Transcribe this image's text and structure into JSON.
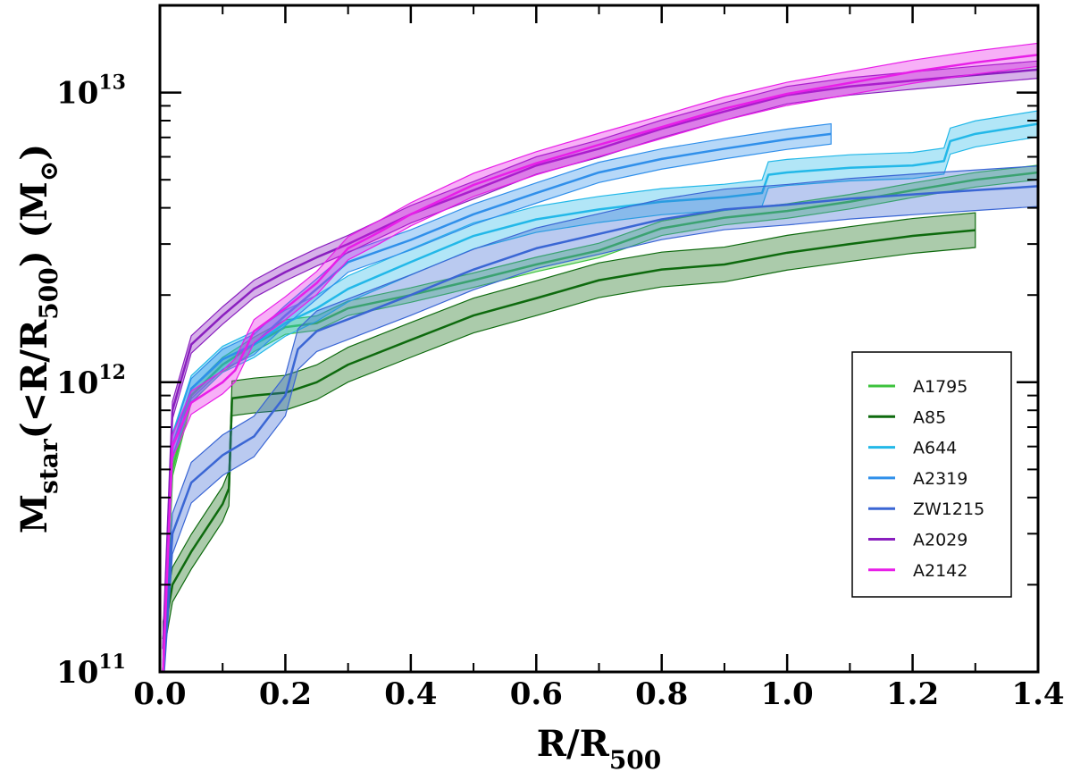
{
  "chart_data": {
    "type": "line",
    "title": "",
    "xlabel": {
      "base": "R/R",
      "sub": "500"
    },
    "ylabel": {
      "m": "M",
      "star": "star",
      "open": "(<R/R",
      "sub500": "500",
      "close": ") (M",
      "sun": "⊙",
      "end": ")"
    },
    "xlim": [
      0.0,
      1.4
    ],
    "ylim": [
      100000000000.0,
      20000000000000.0
    ],
    "yscale": "log",
    "grid": false,
    "legend_position": "lower-right",
    "x_ticks": [
      {
        "value": 0.0,
        "label": "0.0"
      },
      {
        "value": 0.2,
        "label": "0.2"
      },
      {
        "value": 0.4,
        "label": "0.4"
      },
      {
        "value": 0.6,
        "label": "0.6"
      },
      {
        "value": 0.8,
        "label": "0.8"
      },
      {
        "value": 1.0,
        "label": "1.0"
      },
      {
        "value": 1.2,
        "label": "1.2"
      },
      {
        "value": 1.4,
        "label": "1.4"
      }
    ],
    "y_ticks": [
      {
        "value": 100000000000.0,
        "base": "10",
        "exp": "11"
      },
      {
        "value": 1000000000000.0,
        "base": "10",
        "exp": "12"
      },
      {
        "value": 10000000000000.0,
        "base": "10",
        "exp": "13"
      }
    ],
    "series": [
      {
        "name": "A1795",
        "color": "#3cc23c",
        "band_dex": 0.025,
        "x": [
          0.005,
          0.02,
          0.05,
          0.1,
          0.15,
          0.2,
          0.25,
          0.3,
          0.4,
          0.5,
          0.6,
          0.7,
          0.8,
          0.9,
          1.0,
          1.1,
          1.2,
          1.3,
          1.4
        ],
        "y": [
          100000000000.0,
          500000000000.0,
          900000000000.0,
          1150000000000.0,
          1350000000000.0,
          1550000000000.0,
          1600000000000.0,
          1800000000000.0,
          2000000000000.0,
          2250000000000.0,
          2550000000000.0,
          2850000000000.0,
          3400000000000.0,
          3700000000000.0,
          3900000000000.0,
          4200000000000.0,
          4600000000000.0,
          5000000000000.0,
          5300000000000.0
        ]
      },
      {
        "name": "A85",
        "color": "#0e6a0e",
        "band_dex": 0.06,
        "x": [
          0.005,
          0.02,
          0.05,
          0.1,
          0.11,
          0.115,
          0.15,
          0.2,
          0.25,
          0.3,
          0.4,
          0.5,
          0.6,
          0.7,
          0.8,
          0.9,
          1.0,
          1.1,
          1.2,
          1.3
        ],
        "y": [
          130000000000.0,
          200000000000.0,
          260000000000.0,
          380000000000.0,
          430000000000.0,
          880000000000.0,
          900000000000.0,
          920000000000.0,
          1000000000000.0,
          1150000000000.0,
          1400000000000.0,
          1700000000000.0,
          1950000000000.0,
          2250000000000.0,
          2450000000000.0,
          2550000000000.0,
          2800000000000.0,
          3000000000000.0,
          3200000000000.0,
          3350000000000.0
        ]
      },
      {
        "name": "A644",
        "color": "#22b8e8",
        "band_dex": 0.045,
        "x": [
          0.005,
          0.02,
          0.05,
          0.1,
          0.15,
          0.2,
          0.25,
          0.3,
          0.4,
          0.5,
          0.6,
          0.7,
          0.8,
          0.9,
          0.96,
          0.97,
          1.0,
          1.1,
          1.2,
          1.25,
          1.26,
          1.3,
          1.4
        ],
        "y": [
          100000000000.0,
          600000000000.0,
          950000000000.0,
          1200000000000.0,
          1350000000000.0,
          1600000000000.0,
          1800000000000.0,
          2100000000000.0,
          2600000000000.0,
          3200000000000.0,
          3650000000000.0,
          3950000000000.0,
          4200000000000.0,
          4350000000000.0,
          4500000000000.0,
          5200000000000.0,
          5300000000000.0,
          5500000000000.0,
          5600000000000.0,
          5800000000000.0,
          6800000000000.0,
          7200000000000.0,
          7800000000000.0
        ]
      },
      {
        "name": "A2319",
        "color": "#2f8fea",
        "band_dex": 0.035,
        "x": [
          0.005,
          0.02,
          0.05,
          0.1,
          0.15,
          0.2,
          0.25,
          0.3,
          0.4,
          0.5,
          0.6,
          0.7,
          0.8,
          0.9,
          1.0,
          1.07
        ],
        "y": [
          100000000000.0,
          600000000000.0,
          950000000000.0,
          1200000000000.0,
          1350000000000.0,
          1700000000000.0,
          2100000000000.0,
          2600000000000.0,
          3100000000000.0,
          3800000000000.0,
          4500000000000.0,
          5300000000000.0,
          5900000000000.0,
          6400000000000.0,
          6900000000000.0,
          7200000000000.0
        ]
      },
      {
        "name": "ZW1215",
        "color": "#3a66d4",
        "band_dex": 0.07,
        "x": [
          0.005,
          0.02,
          0.05,
          0.1,
          0.15,
          0.2,
          0.22,
          0.25,
          0.3,
          0.4,
          0.5,
          0.6,
          0.7,
          0.8,
          0.9,
          1.0,
          1.1,
          1.2,
          1.3,
          1.4
        ],
        "y": [
          100000000000.0,
          300000000000.0,
          450000000000.0,
          560000000000.0,
          650000000000.0,
          900000000000.0,
          1300000000000.0,
          1500000000000.0,
          1650000000000.0,
          2000000000000.0,
          2450000000000.0,
          2900000000000.0,
          3250000000000.0,
          3650000000000.0,
          3950000000000.0,
          4100000000000.0,
          4300000000000.0,
          4450000000000.0,
          4600000000000.0,
          4750000000000.0
        ]
      },
      {
        "name": "A2029",
        "color": "#8a1fbf",
        "band_dex": 0.03,
        "x": [
          0.005,
          0.02,
          0.05,
          0.1,
          0.15,
          0.2,
          0.25,
          0.3,
          0.4,
          0.5,
          0.6,
          0.7,
          0.8,
          0.9,
          1.0,
          1.1,
          1.2,
          1.3,
          1.4
        ],
        "y": [
          120000000000.0,
          800000000000.0,
          1350000000000.0,
          1700000000000.0,
          2100000000000.0,
          2400000000000.0,
          2700000000000.0,
          3000000000000.0,
          3800000000000.0,
          4600000000000.0,
          5600000000000.0,
          6400000000000.0,
          7500000000000.0,
          8600000000000.0,
          9800000000000.0,
          10500000000000.0,
          11000000000000.0,
          11500000000000.0,
          12000000000000.0
        ]
      },
      {
        "name": "A2142",
        "color": "#e81ee8",
        "band_dex": 0.04,
        "x": [
          0.005,
          0.02,
          0.05,
          0.1,
          0.12,
          0.15,
          0.2,
          0.25,
          0.3,
          0.35,
          0.4,
          0.5,
          0.6,
          0.7,
          0.8,
          0.9,
          1.0,
          1.1,
          1.2,
          1.3,
          1.4
        ],
        "y": [
          100000000000.0,
          600000000000.0,
          850000000000.0,
          1000000000000.0,
          1100000000000.0,
          1500000000000.0,
          1800000000000.0,
          2200000000000.0,
          2900000000000.0,
          3300000000000.0,
          3800000000000.0,
          4800000000000.0,
          5700000000000.0,
          6600000000000.0,
          7600000000000.0,
          8800000000000.0,
          9900000000000.0,
          10800000000000.0,
          11800000000000.0,
          12700000000000.0,
          13500000000000.0
        ]
      }
    ]
  }
}
